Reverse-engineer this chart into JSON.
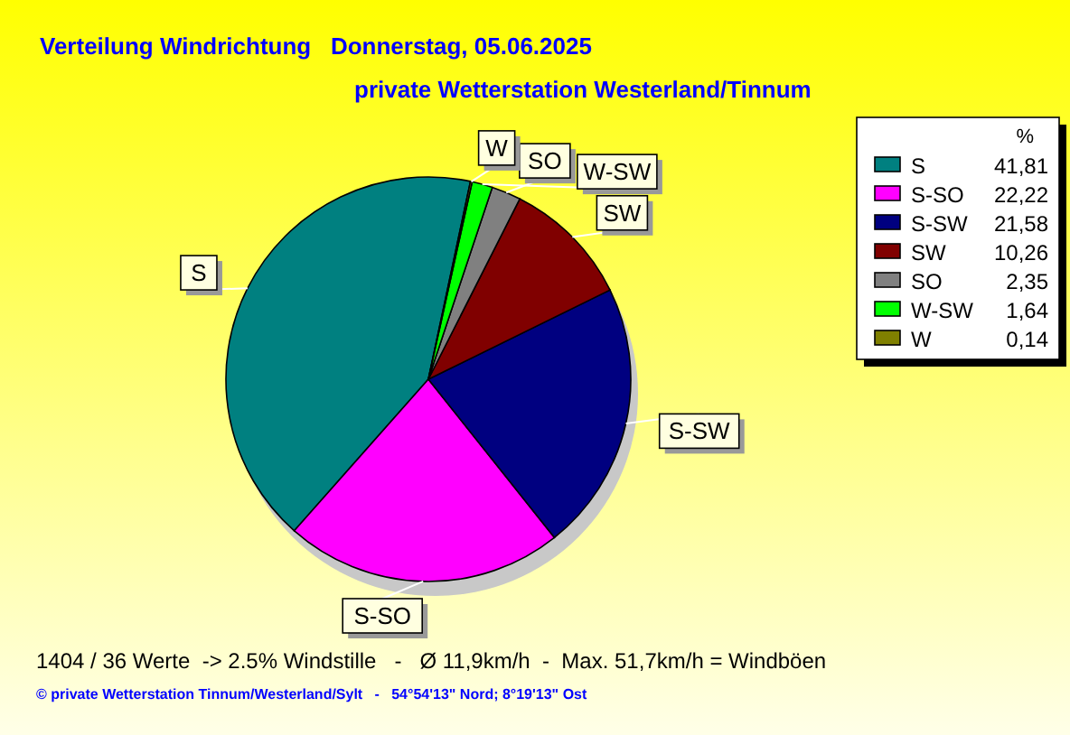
{
  "chart_data": {
    "type": "pie",
    "title": "Verteilung Windrichtung   Donnerstag, 05.06.2025",
    "subtitle": "private Wetterstation Westerland/Tinnum",
    "legend_title": "%",
    "categories": [
      "S",
      "S-SO",
      "S-SW",
      "SW",
      "SO",
      "W-SW",
      "W"
    ],
    "values": [
      41.81,
      22.22,
      21.58,
      10.26,
      2.35,
      1.64,
      0.14
    ],
    "value_labels": [
      "41,81",
      "22,22",
      "21,58",
      "10,26",
      "2,35",
      "1,64",
      "0,14"
    ],
    "colors": [
      "#008080",
      "#ff00ff",
      "#000080",
      "#800000",
      "#808080",
      "#00ff00",
      "#808000"
    ],
    "legend": "top right",
    "annotations": [
      "1404 / 36 Werte  -> 2.5% Windstille   -   Ø 11,9km/h  -  Max. 51,7km/h = Windböen",
      "© private Wetterstation Tinnum/Westerland/Sylt   -   54°54'13\" Nord; 8°19'13\" Ost"
    ]
  }
}
